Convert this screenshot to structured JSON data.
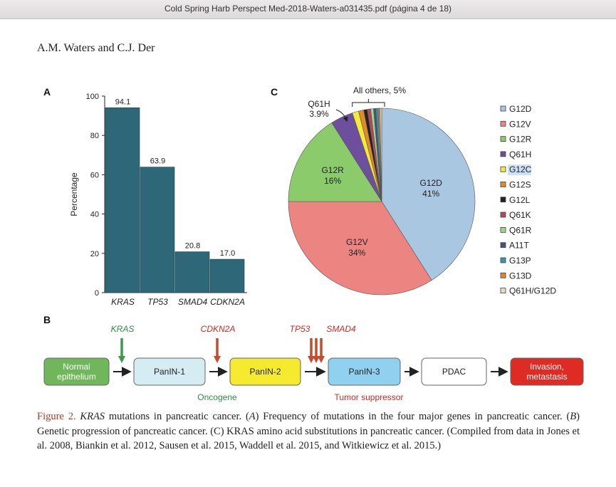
{
  "window": {
    "title": "Cold Spring Harb Perspect Med-2018-Waters-a031435.pdf (página 4 de 18)"
  },
  "page": {
    "authors": "A.M. Waters and C.J. Der"
  },
  "panels": {
    "a": "A",
    "b": "B",
    "c": "C"
  },
  "colors": {
    "bar": "#2e6777",
    "kras": "#2e8b45",
    "suppressor_label": "#cc2a1e"
  },
  "chart_data": [
    {
      "type": "bar",
      "categories": [
        "KRAS",
        "TP53",
        "SMAD4",
        "CDKN2A"
      ],
      "values": [
        94.1,
        63.9,
        20.8,
        17.0
      ],
      "value_labels": [
        "94.1",
        "63.9",
        "20.8",
        "17.0"
      ],
      "ylabel": "Percentage",
      "ylim": [
        0,
        100
      ],
      "yticks": [
        "0",
        "20",
        "40",
        "60",
        "80",
        "100"
      ]
    },
    {
      "type": "pie",
      "legend_placement": "right",
      "slices": [
        {
          "name": "G12D",
          "value": 41,
          "color": "#a9c7e0",
          "label": "G12D",
          "pct": "41%"
        },
        {
          "name": "G12V",
          "value": 34,
          "color": "#ec8582",
          "label": "G12V",
          "pct": "34%"
        },
        {
          "name": "G12R",
          "value": 16,
          "color": "#8bcb6c",
          "label": "G12R",
          "pct": "16%"
        },
        {
          "name": "Q61H",
          "value": 3.9,
          "color": "#6e4f9e"
        },
        {
          "name": "G12C",
          "value": 1.1,
          "color": "#f3ea3a"
        },
        {
          "name": "G12S",
          "value": 0.9,
          "color": "#e08a2e"
        },
        {
          "name": "G12L",
          "value": 0.6,
          "color": "#222222"
        },
        {
          "name": "Q61K",
          "value": 0.6,
          "color": "#b8475a"
        },
        {
          "name": "Q61R",
          "value": 0.5,
          "color": "#9fd58e"
        },
        {
          "name": "A11T",
          "value": 0.4,
          "color": "#41557a"
        },
        {
          "name": "G13P",
          "value": 0.4,
          "color": "#3f8fb0"
        },
        {
          "name": "G13D",
          "value": 0.3,
          "color": "#d88a32"
        },
        {
          "name": "Q61H/G12D",
          "value": 0.3,
          "color": "#e3dcc4"
        }
      ],
      "annotations": {
        "q61h_name": "Q61H",
        "q61h_pct": "3.9%",
        "others": "All others, 5%"
      },
      "legend": [
        "G12D",
        "G12V",
        "G12R",
        "Q61H",
        "G12C",
        "G12S",
        "G12L",
        "Q61K",
        "Q61R",
        "A11T",
        "G13P",
        "G13D",
        "Q61H/G12D"
      ]
    }
  ],
  "progression": {
    "stages": [
      {
        "label": "Normal\nepithelium",
        "fill": "#6fb75a",
        "text": "#ffffff"
      },
      {
        "label": "PanIN-1",
        "fill": "#d4ecf2",
        "text": "#222222"
      },
      {
        "label": "PanIN-2",
        "fill": "#f6ea2f",
        "text": "#222222"
      },
      {
        "label": "PanIN-3",
        "fill": "#8fd1ee",
        "text": "#222222"
      },
      {
        "label": "PDAC",
        "fill": "#ffffff",
        "text": "#222222"
      },
      {
        "label": "Invasion,\nmetastasis",
        "fill": "#de2c25",
        "text": "#ffffff"
      }
    ],
    "genes": [
      "KRAS",
      "CDKN2A",
      "TP53",
      "SMAD4"
    ],
    "oncogene_label": "Oncogene",
    "suppressor_label": "Tumor suppressor"
  },
  "caption": {
    "fig_label": "Figure 2.",
    "kras": "KRAS",
    "part1": " mutations in pancreatic cancer. (",
    "A": "A",
    "part2": ") Frequency of mutations in the four major genes in pancreatic cancer. (",
    "B": "B",
    "part3": ") Genetic progression of pancreatic cancer. (C) KRAS amino acid substitutions in pancreatic cancer. (Compiled from data in Jones et al. 2008, Biankin et al. 2012, Sausen et al. 2015, Waddell et al. 2015, and Witkiewicz et al. 2015.)"
  }
}
